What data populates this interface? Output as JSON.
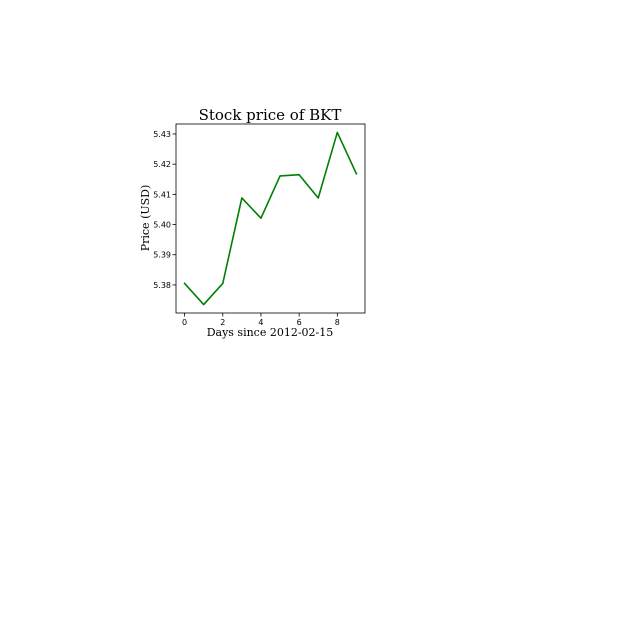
{
  "chart_data": {
    "type": "line",
    "title": "Stock price of BKT",
    "xlabel": "Days since 2012-02-15",
    "ylabel": "Price (USD)",
    "x": [
      0,
      1,
      2,
      3,
      4,
      5,
      6,
      7,
      8,
      9
    ],
    "series": [
      {
        "values": [
          5.3805,
          5.3735,
          5.3805,
          5.4088,
          5.4021,
          5.4161,
          5.4165,
          5.4088,
          5.4305,
          5.4168
        ],
        "color": "#008000"
      }
    ],
    "xlim": [
      -0.45,
      9.45
    ],
    "ylim": [
      5.3707,
      5.4333
    ],
    "xticks": [
      0,
      2,
      4,
      6,
      8
    ],
    "xtick_labels": [
      "0",
      "2",
      "4",
      "6",
      "8"
    ],
    "yticks": [
      5.38,
      5.39,
      5.4,
      5.41,
      5.42,
      5.43
    ],
    "ytick_labels": [
      "5.38",
      "5.39",
      "5.40",
      "5.41",
      "5.42",
      "5.43"
    ],
    "grid": false,
    "legend": false
  }
}
